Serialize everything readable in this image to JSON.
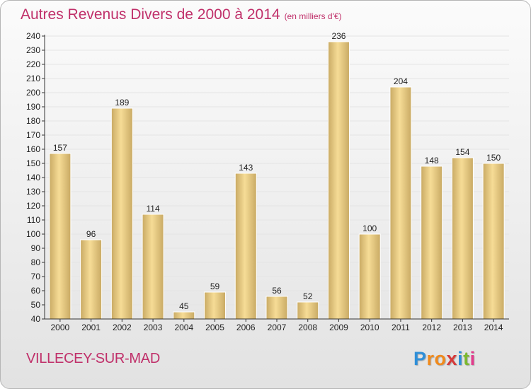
{
  "title": "Autres Revenus Divers de 2000 à 2014",
  "subtitle": "(en milliers d'€)",
  "commune": "VILLECEY-SUR-MAD",
  "logo": {
    "text": "Proxiti",
    "letter_colors": [
      "#2f8fd8",
      "#f08a1c",
      "#f08a1c",
      "#d63a3a",
      "#2f8fd8",
      "#7cb82f",
      "#e23c8c"
    ]
  },
  "colors": {
    "title": "#c0306a",
    "bar_light": "#f6dc96",
    "bar_dark": "#c9aa64",
    "grid": "#e4e4e4",
    "axis": "#333333"
  },
  "chart_data": {
    "type": "bar",
    "categories": [
      "2000",
      "2001",
      "2002",
      "2003",
      "2004",
      "2005",
      "2006",
      "2007",
      "2008",
      "2009",
      "2010",
      "2011",
      "2012",
      "2013",
      "2014"
    ],
    "values": [
      157,
      96,
      189,
      114,
      45,
      59,
      143,
      56,
      52,
      236,
      100,
      204,
      148,
      154,
      150
    ],
    "ylim": [
      40,
      240
    ],
    "yticks": [
      40,
      50,
      60,
      70,
      80,
      90,
      100,
      110,
      120,
      130,
      140,
      150,
      160,
      170,
      180,
      190,
      200,
      210,
      220,
      230,
      240
    ],
    "grid": true,
    "data_labels": true
  }
}
